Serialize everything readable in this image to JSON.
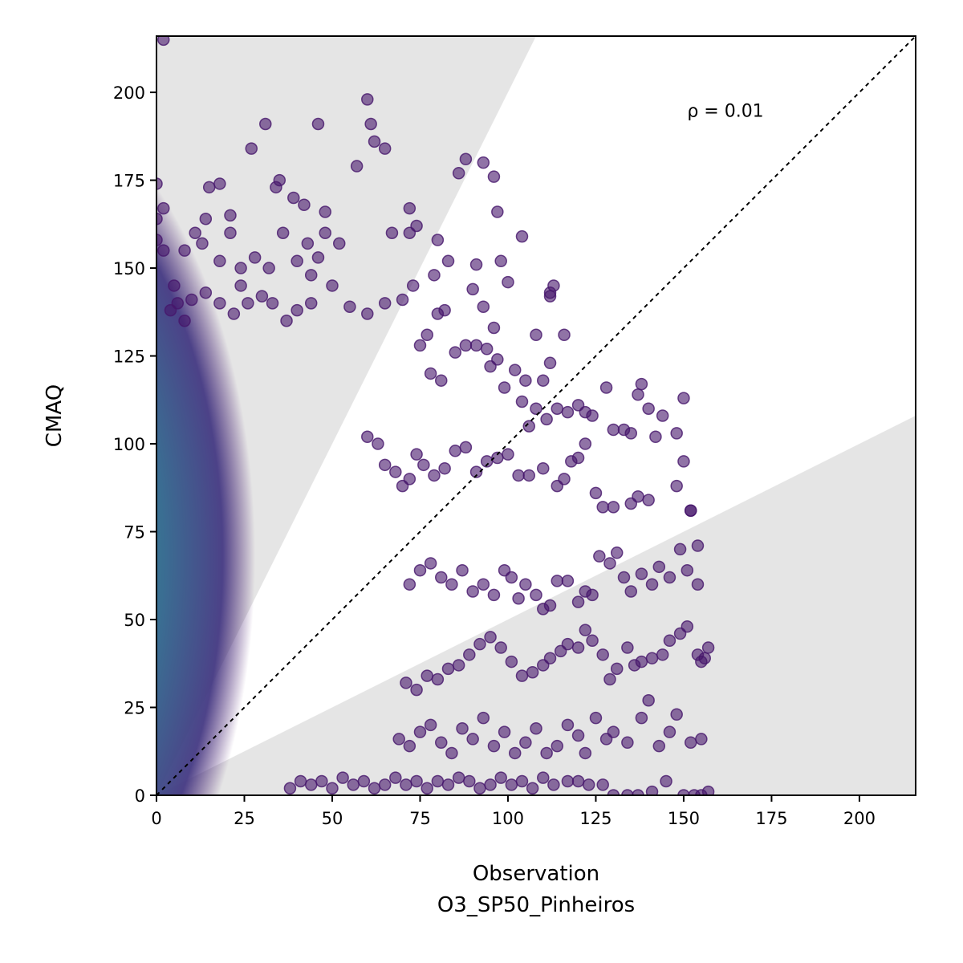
{
  "chart_data": {
    "type": "scatter",
    "title": "",
    "xlabel": "Observation",
    "xlabel_line2": "O3_SP50_Pinheiros",
    "ylabel": "CMAQ",
    "xlim": [
      0,
      216
    ],
    "ylim": [
      0,
      216
    ],
    "xticks": [
      0,
      25,
      50,
      75,
      100,
      125,
      150,
      175,
      200
    ],
    "yticks": [
      0,
      25,
      50,
      75,
      100,
      125,
      150,
      175,
      200
    ],
    "annotation": "ρ = 0.01",
    "annotation_position": [
      151,
      193
    ],
    "identity_line": true,
    "acceptance_wedge": {
      "upper_slope": 2.0,
      "lower_slope": 0.5,
      "color": "#e5e5e5"
    },
    "colormap": "viridis",
    "marker_color": "#46166b",
    "density_note": "dense cloud of points concentrated at low observation values (0–70) across CMAQ 0–150",
    "points": [
      [
        2,
        215
      ],
      [
        0,
        174
      ],
      [
        2,
        167
      ],
      [
        0,
        164
      ],
      [
        0,
        158
      ],
      [
        2,
        155
      ],
      [
        8,
        155
      ],
      [
        5,
        145
      ],
      [
        11,
        160
      ],
      [
        14,
        164
      ],
      [
        18,
        174
      ],
      [
        21,
        165
      ],
      [
        15,
        173
      ],
      [
        13,
        157
      ],
      [
        21,
        160
      ],
      [
        24,
        150
      ],
      [
        27,
        184
      ],
      [
        31,
        191
      ],
      [
        34,
        173
      ],
      [
        35,
        175
      ],
      [
        39,
        170
      ],
      [
        42,
        168
      ],
      [
        46,
        191
      ],
      [
        48,
        166
      ],
      [
        48,
        160
      ],
      [
        43,
        157
      ],
      [
        40,
        152
      ],
      [
        36,
        160
      ],
      [
        32,
        150
      ],
      [
        28,
        153
      ],
      [
        24,
        145
      ],
      [
        18,
        152
      ],
      [
        60,
        198
      ],
      [
        61,
        191
      ],
      [
        62,
        186
      ],
      [
        57,
        179
      ],
      [
        65,
        184
      ],
      [
        67,
        160
      ],
      [
        72,
        167
      ],
      [
        72,
        160
      ],
      [
        74,
        162
      ],
      [
        80,
        158
      ],
      [
        86,
        177
      ],
      [
        88,
        181
      ],
      [
        93,
        180
      ],
      [
        96,
        176
      ],
      [
        97,
        166
      ],
      [
        91,
        151
      ],
      [
        83,
        152
      ],
      [
        79,
        148
      ],
      [
        73,
        145
      ],
      [
        70,
        141
      ],
      [
        65,
        140
      ],
      [
        60,
        137
      ],
      [
        55,
        139
      ],
      [
        50,
        145
      ],
      [
        52,
        157
      ],
      [
        46,
        153
      ],
      [
        44,
        148
      ],
      [
        44,
        140
      ],
      [
        40,
        138
      ],
      [
        37,
        135
      ],
      [
        33,
        140
      ],
      [
        30,
        142
      ],
      [
        26,
        140
      ],
      [
        22,
        137
      ],
      [
        18,
        140
      ],
      [
        14,
        143
      ],
      [
        10,
        141
      ],
      [
        6,
        140
      ],
      [
        4,
        138
      ],
      [
        8,
        135
      ],
      [
        98,
        152
      ],
      [
        100,
        146
      ],
      [
        104,
        159
      ],
      [
        90,
        144
      ],
      [
        93,
        139
      ],
      [
        96,
        133
      ],
      [
        80,
        137
      ],
      [
        82,
        138
      ],
      [
        77,
        131
      ],
      [
        75,
        128
      ],
      [
        78,
        120
      ],
      [
        81,
        118
      ],
      [
        85,
        126
      ],
      [
        88,
        128
      ],
      [
        91,
        128
      ],
      [
        94,
        127
      ],
      [
        95,
        122
      ],
      [
        97,
        124
      ],
      [
        99,
        116
      ],
      [
        102,
        121
      ],
      [
        105,
        118
      ],
      [
        108,
        131
      ],
      [
        110,
        118
      ],
      [
        112,
        123
      ],
      [
        116,
        131
      ],
      [
        112,
        143
      ],
      [
        113,
        145
      ],
      [
        112,
        142
      ],
      [
        104,
        112
      ],
      [
        106,
        105
      ],
      [
        108,
        110
      ],
      [
        111,
        107
      ],
      [
        114,
        110
      ],
      [
        117,
        109
      ],
      [
        120,
        111
      ],
      [
        122,
        109
      ],
      [
        124,
        108
      ],
      [
        128,
        116
      ],
      [
        130,
        104
      ],
      [
        133,
        104
      ],
      [
        135,
        103
      ],
      [
        137,
        114
      ],
      [
        138,
        117
      ],
      [
        140,
        110
      ],
      [
        142,
        102
      ],
      [
        144,
        108
      ],
      [
        148,
        103
      ],
      [
        150,
        113
      ],
      [
        150,
        95
      ],
      [
        148,
        88
      ],
      [
        140,
        84
      ],
      [
        137,
        85
      ],
      [
        135,
        83
      ],
      [
        130,
        82
      ],
      [
        127,
        82
      ],
      [
        125,
        86
      ],
      [
        122,
        100
      ],
      [
        120,
        96
      ],
      [
        118,
        95
      ],
      [
        116,
        90
      ],
      [
        114,
        88
      ],
      [
        110,
        93
      ],
      [
        106,
        91
      ],
      [
        103,
        91
      ],
      [
        100,
        97
      ],
      [
        97,
        96
      ],
      [
        94,
        95
      ],
      [
        91,
        92
      ],
      [
        88,
        99
      ],
      [
        85,
        98
      ],
      [
        82,
        93
      ],
      [
        79,
        91
      ],
      [
        76,
        94
      ],
      [
        74,
        97
      ],
      [
        72,
        90
      ],
      [
        70,
        88
      ],
      [
        68,
        92
      ],
      [
        65,
        94
      ],
      [
        63,
        100
      ],
      [
        60,
        102
      ],
      [
        152,
        81
      ],
      [
        152,
        81
      ],
      [
        154,
        71
      ],
      [
        151,
        64
      ],
      [
        149,
        70
      ],
      [
        146,
        62
      ],
      [
        143,
        65
      ],
      [
        141,
        60
      ],
      [
        138,
        63
      ],
      [
        135,
        58
      ],
      [
        133,
        62
      ],
      [
        131,
        69
      ],
      [
        129,
        66
      ],
      [
        126,
        68
      ],
      [
        124,
        57
      ],
      [
        122,
        58
      ],
      [
        120,
        55
      ],
      [
        117,
        61
      ],
      [
        114,
        61
      ],
      [
        112,
        54
      ],
      [
        110,
        53
      ],
      [
        108,
        57
      ],
      [
        105,
        60
      ],
      [
        103,
        56
      ],
      [
        101,
        62
      ],
      [
        99,
        64
      ],
      [
        96,
        57
      ],
      [
        93,
        60
      ],
      [
        90,
        58
      ],
      [
        87,
        64
      ],
      [
        84,
        60
      ],
      [
        81,
        62
      ],
      [
        78,
        66
      ],
      [
        75,
        64
      ],
      [
        72,
        60
      ],
      [
        154,
        60
      ],
      [
        151,
        48
      ],
      [
        149,
        46
      ],
      [
        146,
        44
      ],
      [
        144,
        40
      ],
      [
        141,
        39
      ],
      [
        138,
        38
      ],
      [
        136,
        37
      ],
      [
        134,
        42
      ],
      [
        131,
        36
      ],
      [
        129,
        33
      ],
      [
        127,
        40
      ],
      [
        124,
        44
      ],
      [
        122,
        47
      ],
      [
        120,
        42
      ],
      [
        117,
        43
      ],
      [
        115,
        41
      ],
      [
        112,
        39
      ],
      [
        110,
        37
      ],
      [
        107,
        35
      ],
      [
        104,
        34
      ],
      [
        101,
        38
      ],
      [
        98,
        42
      ],
      [
        95,
        45
      ],
      [
        92,
        43
      ],
      [
        89,
        40
      ],
      [
        86,
        37
      ],
      [
        83,
        36
      ],
      [
        80,
        33
      ],
      [
        77,
        34
      ],
      [
        74,
        30
      ],
      [
        71,
        32
      ],
      [
        157,
        42
      ],
      [
        156,
        39
      ],
      [
        154,
        40
      ],
      [
        155,
        38
      ],
      [
        152,
        15
      ],
      [
        155,
        16
      ],
      [
        148,
        23
      ],
      [
        146,
        18
      ],
      [
        143,
        14
      ],
      [
        140,
        27
      ],
      [
        138,
        22
      ],
      [
        134,
        15
      ],
      [
        130,
        18
      ],
      [
        128,
        16
      ],
      [
        125,
        22
      ],
      [
        122,
        12
      ],
      [
        120,
        17
      ],
      [
        117,
        20
      ],
      [
        114,
        14
      ],
      [
        111,
        12
      ],
      [
        108,
        19
      ],
      [
        105,
        15
      ],
      [
        102,
        12
      ],
      [
        99,
        18
      ],
      [
        96,
        14
      ],
      [
        93,
        22
      ],
      [
        90,
        16
      ],
      [
        87,
        19
      ],
      [
        84,
        12
      ],
      [
        81,
        15
      ],
      [
        78,
        20
      ],
      [
        75,
        18
      ],
      [
        72,
        14
      ],
      [
        69,
        16
      ],
      [
        145,
        4
      ],
      [
        141,
        1
      ],
      [
        137,
        0
      ],
      [
        134,
        0
      ],
      [
        130,
        0
      ],
      [
        127,
        3
      ],
      [
        123,
        3
      ],
      [
        120,
        4
      ],
      [
        117,
        4
      ],
      [
        113,
        3
      ],
      [
        110,
        5
      ],
      [
        107,
        2
      ],
      [
        104,
        4
      ],
      [
        101,
        3
      ],
      [
        98,
        5
      ],
      [
        95,
        3
      ],
      [
        92,
        2
      ],
      [
        89,
        4
      ],
      [
        86,
        5
      ],
      [
        83,
        3
      ],
      [
        80,
        4
      ],
      [
        77,
        2
      ],
      [
        74,
        4
      ],
      [
        71,
        3
      ],
      [
        68,
        5
      ],
      [
        65,
        3
      ],
      [
        62,
        2
      ],
      [
        59,
        4
      ],
      [
        56,
        3
      ],
      [
        53,
        5
      ],
      [
        50,
        2
      ],
      [
        47,
        4
      ],
      [
        44,
        3
      ],
      [
        41,
        4
      ],
      [
        38,
        2
      ],
      [
        157,
        1
      ],
      [
        155,
        0
      ],
      [
        153,
        0
      ],
      [
        150,
        0
      ]
    ]
  }
}
